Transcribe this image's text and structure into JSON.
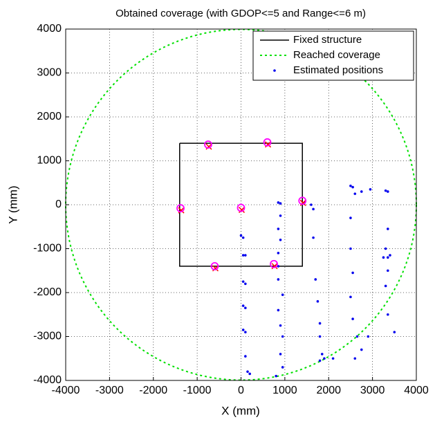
{
  "chart_data": {
    "type": "scatter",
    "title": "Obtained coverage (with GDOP<=5 and Range<=6 m)",
    "x_label": "X (mm)",
    "y_label": "Y (mm)",
    "xlim": [
      -4000,
      4000
    ],
    "ylim": [
      -4000,
      4000
    ],
    "xticks": [
      -4000,
      -3000,
      -2000,
      -1000,
      0,
      1000,
      2000,
      3000,
      4000
    ],
    "yticks": [
      -4000,
      -3000,
      -2000,
      -1000,
      0,
      1000,
      2000,
      3000,
      4000
    ],
    "grid": true,
    "legend": "upper-right",
    "series": [
      {
        "name": "Fixed structure",
        "color": "#000000",
        "kind": "line",
        "x": [
          -1400,
          1400,
          1400,
          -1400,
          -1400
        ],
        "y": [
          1400,
          1400,
          -1400,
          -1400,
          1400
        ]
      },
      {
        "name": "Reached coverage",
        "color": "#00e000",
        "kind": "circle",
        "center": [
          0,
          0
        ],
        "radius": 4000
      },
      {
        "name": "Estimated positions",
        "color": "#0000ee",
        "kind": "points",
        "x": [
          0,
          50,
          50,
          100,
          50,
          100,
          50,
          100,
          50,
          100,
          100,
          150,
          200,
          850,
          900,
          900,
          850,
          900,
          850,
          850,
          850,
          950,
          850,
          900,
          950,
          900,
          950,
          800,
          1450,
          1600,
          1650,
          1650,
          1700,
          1750,
          1800,
          1800,
          1850,
          1800,
          1900,
          2100,
          2500,
          2550,
          2600,
          2500,
          2500,
          2550,
          2500,
          2550,
          2650,
          2600,
          2750,
          2750,
          2900,
          3300,
          3350,
          3350,
          3300,
          3350,
          3350,
          3300,
          3350,
          3500,
          2950,
          3400,
          3250
        ],
        "y": [
          -700,
          -750,
          -1150,
          -1150,
          -1750,
          -1800,
          -2300,
          -2350,
          -2850,
          -2900,
          -3450,
          -3800,
          -3850,
          50,
          30,
          -250,
          -550,
          -800,
          -1100,
          -1400,
          -1700,
          -2050,
          -2400,
          -2750,
          -3000,
          -3400,
          -3700,
          -3900,
          50,
          0,
          -100,
          -750,
          -1700,
          -2200,
          -2700,
          -3000,
          -3400,
          -3550,
          -3500,
          -3500,
          430,
          400,
          250,
          -300,
          -1000,
          -1550,
          -2100,
          -2600,
          -3000,
          -3500,
          -3300,
          300,
          -3000,
          320,
          300,
          -550,
          -1000,
          -1200,
          -1500,
          -1850,
          -2500,
          -2900,
          350,
          -1150,
          -1200
        ]
      }
    ],
    "anchors": {
      "circle_color": "#ff00ff",
      "cross_color": "#ff0000",
      "x": [
        -750,
        600,
        -1380,
        0,
        1400,
        -600,
        750
      ],
      "y": [
        1370,
        1420,
        -80,
        -70,
        90,
        -1400,
        -1350
      ]
    }
  }
}
